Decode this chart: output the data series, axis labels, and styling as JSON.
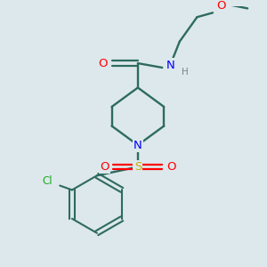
{
  "background_color": "#dce8ec",
  "bond_color": "#2d6b5e",
  "atom_colors": {
    "O": "#ff0000",
    "N": "#0000ff",
    "S": "#ccaa00",
    "Cl": "#22aa22",
    "H": "#808080",
    "C": "#2d6b5e"
  },
  "figsize": [
    3.0,
    3.0
  ],
  "dpi": 100
}
